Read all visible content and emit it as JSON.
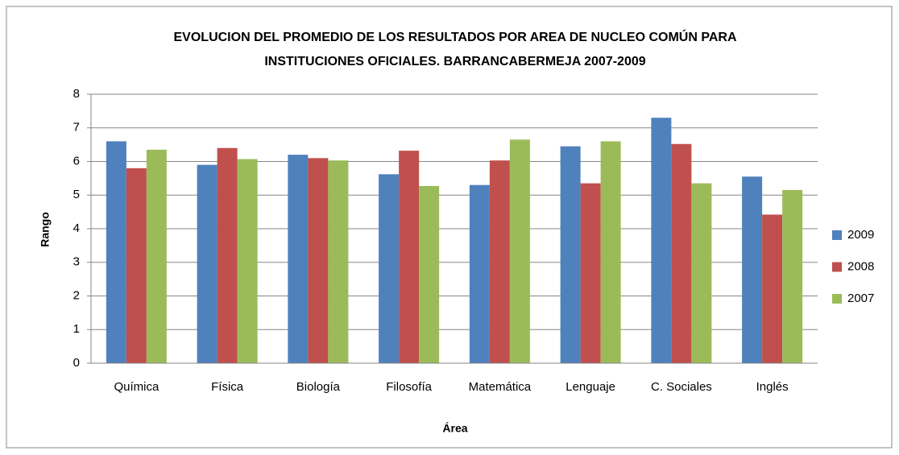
{
  "chart_data": {
    "type": "bar",
    "title": [
      "EVOLUCION DEL PROMEDIO DE LOS RESULTADOS POR AREA DE NUCLEO COMÚN PARA",
      "INSTITUCIONES OFICIALES. BARRANCABERMEJA 2007-2009"
    ],
    "x_label": "Área",
    "y_label": "Rango",
    "categories": [
      "Química",
      "Física",
      "Biología",
      "Filosofía",
      "Matemática",
      "Lenguaje",
      "C. Sociales",
      "Inglés"
    ],
    "series": [
      {
        "name": "2009",
        "color": "#4f81bd",
        "values": [
          6.6,
          5.9,
          6.2,
          5.62,
          5.3,
          6.45,
          7.3,
          5.55
        ]
      },
      {
        "name": "2008",
        "color": "#c0504d",
        "values": [
          5.8,
          6.4,
          6.1,
          6.32,
          6.03,
          5.35,
          6.52,
          4.42
        ]
      },
      {
        "name": "2007",
        "color": "#9bbb59",
        "values": [
          6.35,
          6.07,
          6.03,
          5.27,
          6.65,
          6.6,
          5.35,
          5.15
        ]
      }
    ],
    "ylim": [
      0,
      8
    ],
    "yticks": [
      0,
      1,
      2,
      3,
      4,
      5,
      6,
      7,
      8
    ],
    "grid": true,
    "legend": "right"
  }
}
